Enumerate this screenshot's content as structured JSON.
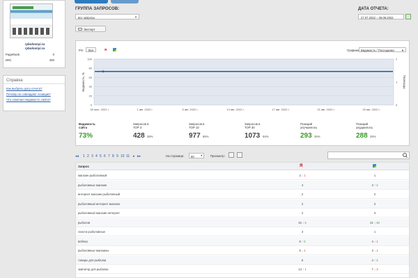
{
  "site": {
    "name_line1": "rybolovnyi.ru",
    "name_line2": "rybolovnyi.ru",
    "metrics": [
      {
        "label": "PageRank",
        "value": "0"
      },
      {
        "label": "ИКС",
        "value": "450"
      }
    ]
  },
  "help": {
    "title": "Справка",
    "links": [
      "Как выбрать дату отчета?",
      "Почему не совпадают позиции?",
      "Что означает видимость сайта?"
    ]
  },
  "header": {
    "group_label": "ГРУППА ЗАПРОСОВ:",
    "group_value": "все запросы",
    "date_label": "ДАТА ОТЧЕТА:",
    "date_value": "27.07.2022 – 26.08.2022",
    "export_label": "Экспорт"
  },
  "chart_panel": {
    "ps_label": "PS:",
    "ps_all": "Все",
    "ps_yandex": "Я",
    "graphs_label": "Графики:",
    "graphs_value": "Видимость / Посещаемо"
  },
  "chart_data": {
    "type": "line",
    "x": [
      "28 июл. 2022 г.",
      "1 авг. 2022 г.",
      "5 авг. 2022 г.",
      "13 авг. 2022 г.",
      "17 авг. 2022 г.",
      "21 авг. 2022 г.",
      "25 авг. 2022 г."
    ],
    "y_left_ticks": [
      "100",
      "80",
      "60",
      "40",
      "20",
      "0"
    ],
    "y_right_ticks": [
      "2",
      "1",
      "0"
    ],
    "ylabel": "Видимость, %",
    "ylabel_right": "Переходы",
    "series": [
      {
        "values": [
          73,
          73,
          73,
          73,
          73,
          73,
          73
        ],
        "color": "#2f5f9e"
      }
    ],
    "ylim": [
      0,
      100
    ],
    "grid": true
  },
  "kpis": [
    {
      "label_1": "Видимость",
      "label_2": "сайта",
      "value": "73%",
      "pct": "",
      "green": true
    },
    {
      "label_1": "Запросов в",
      "label_2": "TOP 3",
      "value": "428",
      "pct": "38%",
      "green": false
    },
    {
      "label_1": "Запросов в",
      "label_2": "TOP 10",
      "value": "977",
      "pct": "86%",
      "green": false
    },
    {
      "label_1": "Запросов в",
      "label_2": "TOP 30",
      "value": "1073",
      "pct": "94%",
      "green": false
    },
    {
      "label_1": "Позиций",
      "label_2": "улучшилось",
      "value": "293",
      "pct": "26%",
      "green": true
    },
    {
      "label_1": "Позиций",
      "label_2": "ухудшилось",
      "value": "288",
      "pct": "25%",
      "green": true
    }
  ],
  "pager": {
    "prev": "◂◂",
    "pages": [
      "1",
      "2",
      "3",
      "4",
      "5",
      "6",
      "7",
      "8",
      "9",
      "10",
      "11"
    ],
    "next": "▸",
    "last": "▸▸",
    "per_page_label": "На странице:",
    "per_page_value": "50",
    "view_label": "Просмотр:"
  },
  "table": {
    "col_query": "Запрос",
    "col_yandex": "Я",
    "rows": [
      {
        "query": "магазин рыболовный",
        "ya": "2",
        "ya_dir": "down",
        "ya_delta": "1",
        "go": "1",
        "go_dir": "",
        "go_delta": ""
      },
      {
        "query": "рыболовные магазин",
        "ya": "4",
        "ya_dir": "",
        "ya_delta": "",
        "go": "3",
        "go_dir": "up",
        "go_delta": "2"
      },
      {
        "query": "интернет магазин рыболовный",
        "ya": "2",
        "ya_dir": "",
        "ya_delta": "",
        "go": "2",
        "go_dir": "",
        "go_delta": ""
      },
      {
        "query": "рыболовный интернет магазин",
        "ya": "2",
        "ya_dir": "",
        "ya_delta": "",
        "go": "2",
        "go_dir": "",
        "go_delta": ""
      },
      {
        "query": "рыболовный магазин интернет",
        "ya": "2",
        "ya_dir": "",
        "ya_delta": "",
        "go": "3",
        "go_dir": "",
        "go_delta": ""
      },
      {
        "query": "рыболов",
        "ya": "32",
        "ya_dir": "down",
        "ya_delta": "4",
        "go": "21",
        "go_dir": "up",
        "go_delta": "40"
      },
      {
        "query": "снасти рыболовные",
        "ya": "3",
        "ya_dir": "",
        "ya_delta": "",
        "go": "1",
        "go_dir": "",
        "go_delta": ""
      },
      {
        "query": "воблер",
        "ya": "6",
        "ya_dir": "up",
        "ya_delta": "2",
        "go": "4",
        "go_dir": "down",
        "go_delta": "1"
      },
      {
        "query": "рыболовные магазины",
        "ya": "5",
        "ya_dir": "down",
        "ya_delta": "1",
        "go": "3",
        "go_dir": "down",
        "go_delta": "1"
      },
      {
        "query": "товары для рыбалки",
        "ya": "6",
        "ya_dir": "",
        "ya_delta": "",
        "go": "4",
        "go_dir": "up",
        "go_delta": "2"
      },
      {
        "query": "экипатор для рыбалки",
        "ya": "13",
        "ya_dir": "up",
        "ya_delta": "1",
        "go": "7",
        "go_dir": "down",
        "go_delta": "3"
      }
    ]
  }
}
